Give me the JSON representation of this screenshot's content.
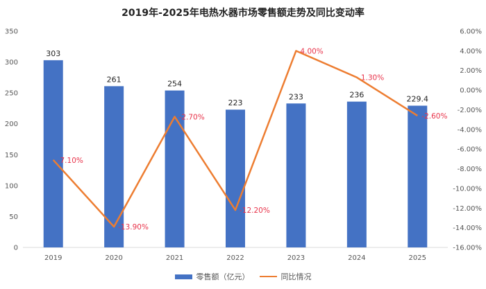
{
  "chart_data": {
    "type": "bar+line",
    "title": "2019年-2025年电热水器市场零售额走势及同比变动率",
    "categories": [
      "2019",
      "2020",
      "2021",
      "2022",
      "2023",
      "2024",
      "2025"
    ],
    "series": [
      {
        "name": "零售额（亿元）",
        "type": "bar",
        "axis": "left",
        "color": "#4472c4",
        "values": [
          303,
          261,
          254,
          223,
          233,
          236,
          229.4
        ],
        "labels": [
          "303",
          "261",
          "254",
          "223",
          "233",
          "236",
          "229.4"
        ]
      },
      {
        "name": "同比情况",
        "type": "line",
        "axis": "right",
        "color": "#ed7d31",
        "values": [
          -7.1,
          -13.9,
          -2.7,
          -12.2,
          4.0,
          1.3,
          -2.6
        ],
        "labels": [
          "-7.10%",
          "-13.90%",
          "-2.70%",
          "-12.20%",
          "4.00%",
          "1.30%",
          "-2.60%"
        ],
        "label_color": "#e8334a"
      }
    ],
    "y_left": {
      "lim": [
        0,
        350
      ],
      "step": 50,
      "ticks": [
        "0",
        "50",
        "100",
        "150",
        "200",
        "250",
        "300",
        "350"
      ]
    },
    "y_right": {
      "lim": [
        -16,
        6
      ],
      "step": 2,
      "ticks": [
        "-16.00%",
        "-14.00%",
        "-12.00%",
        "-10.00%",
        "-8.00%",
        "-6.00%",
        "-4.00%",
        "-2.00%",
        "0.00%",
        "2.00%",
        "4.00%",
        "6.00%"
      ]
    },
    "grid": false,
    "legend": "bottom"
  }
}
